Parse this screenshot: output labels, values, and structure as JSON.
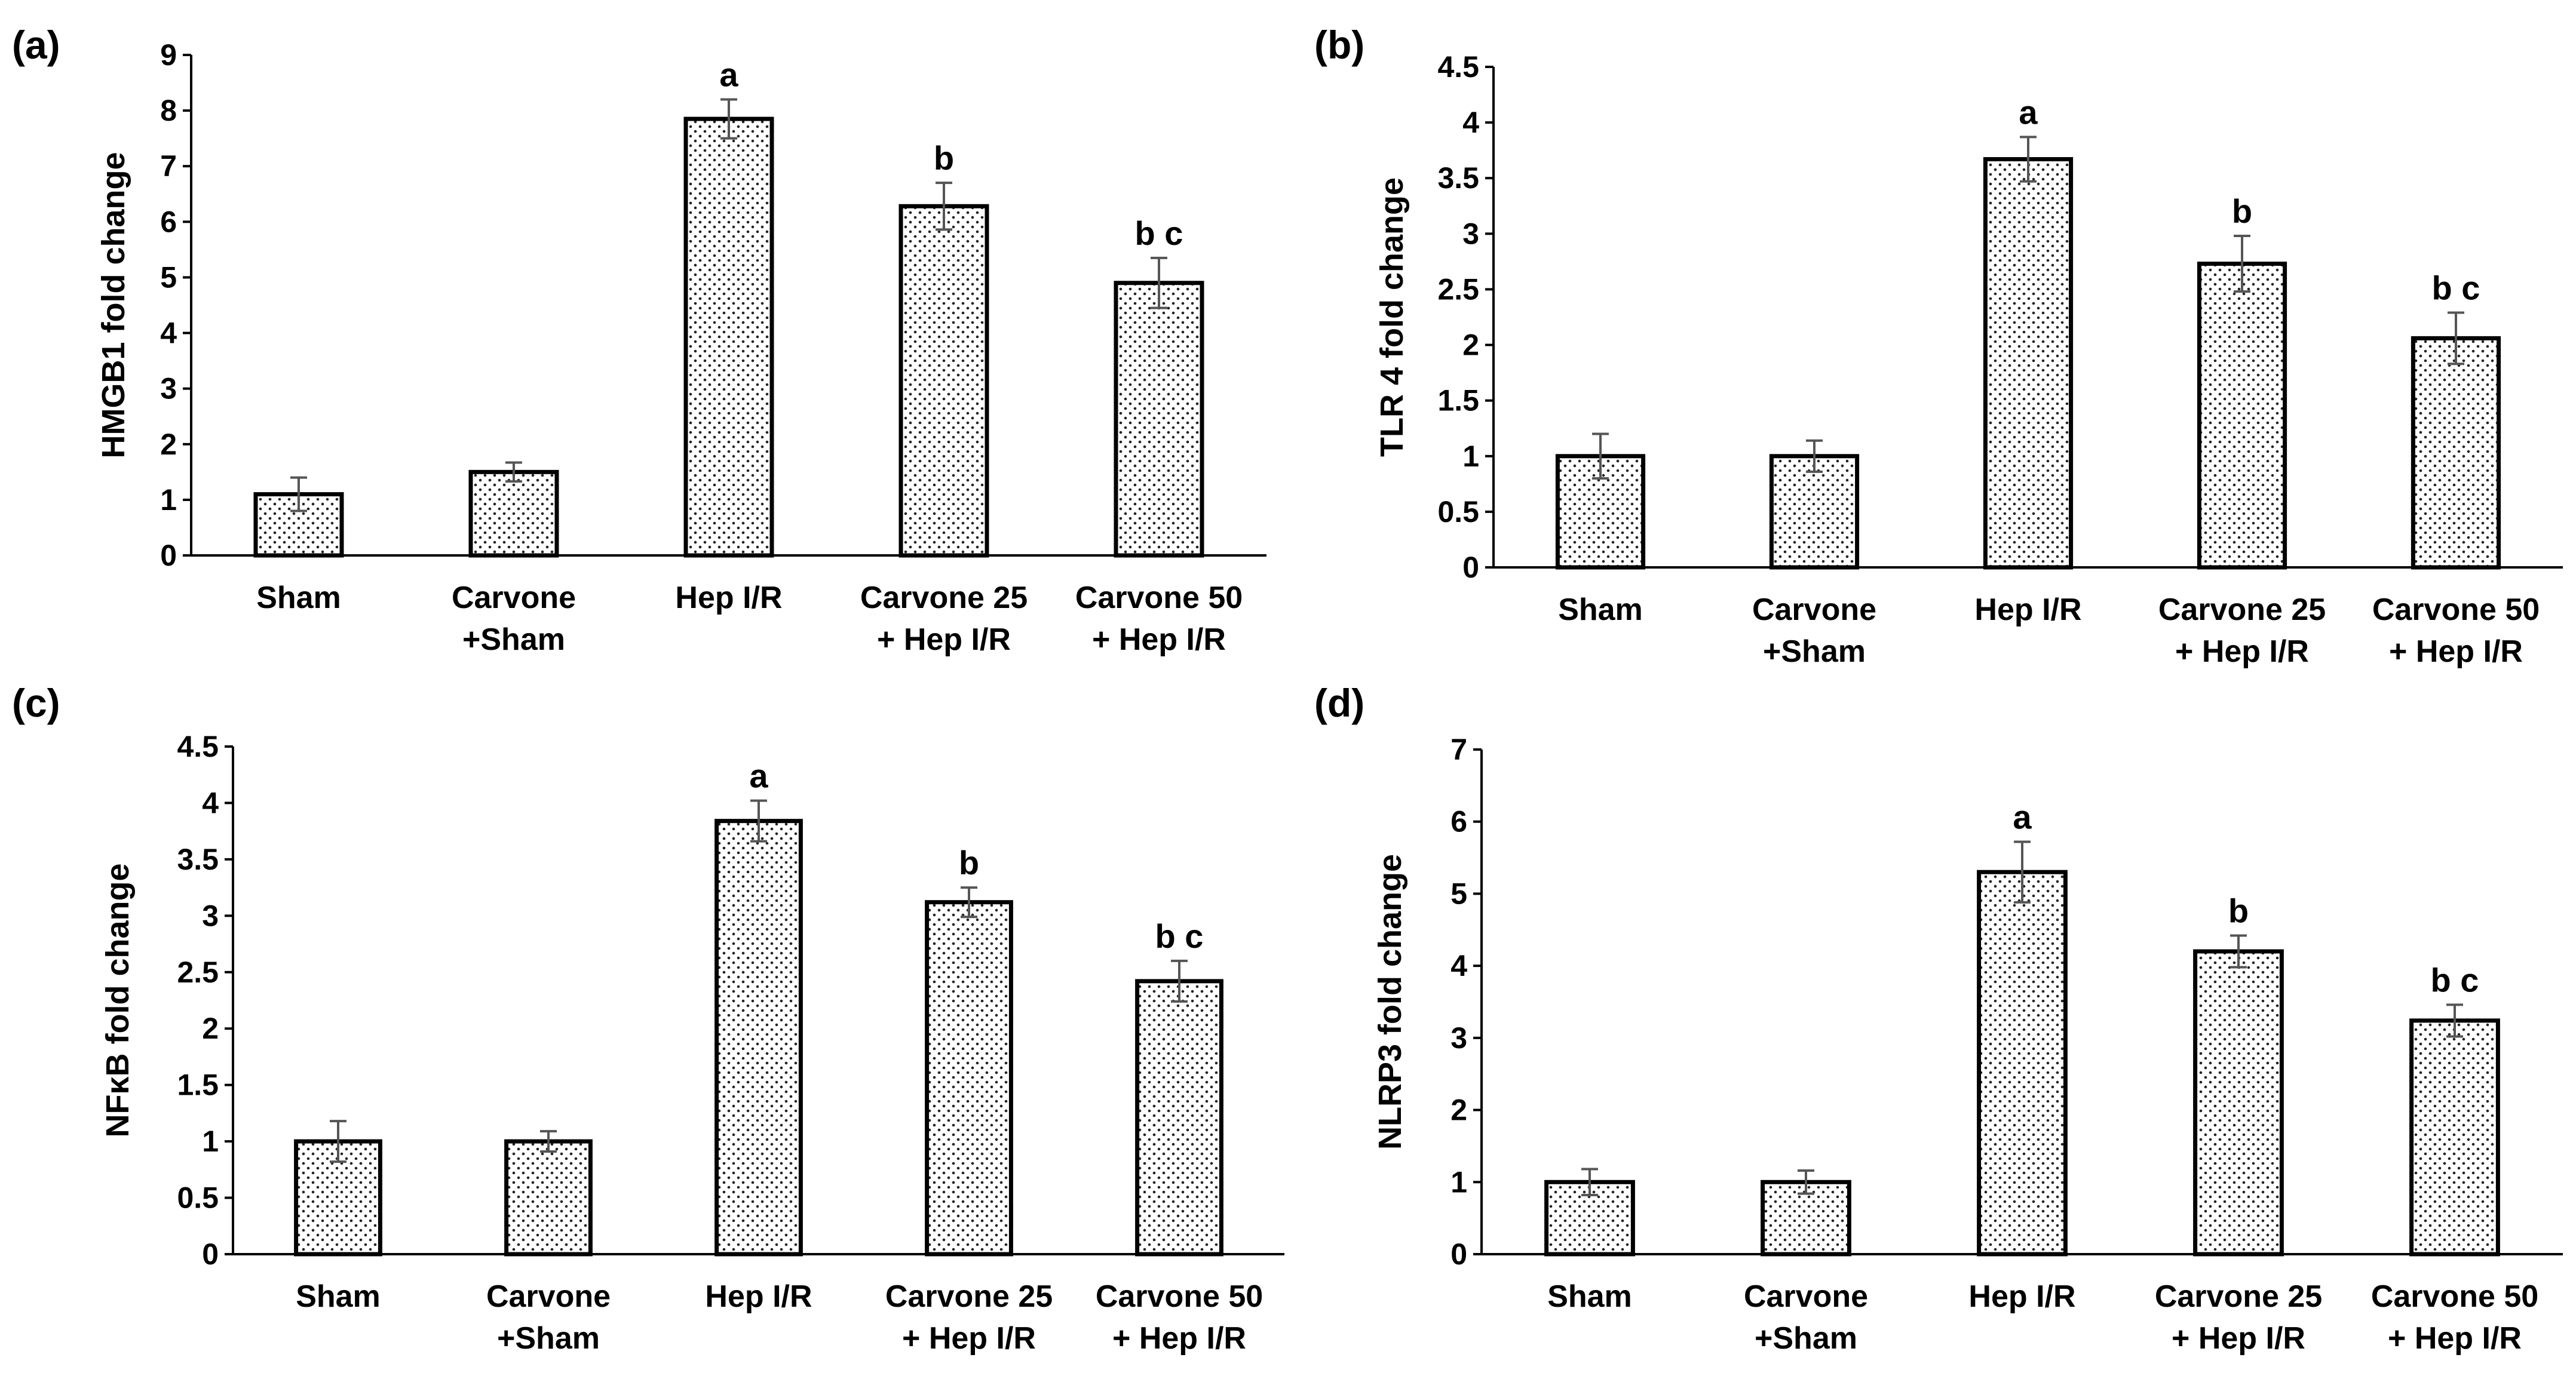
{
  "chart_data": [
    {
      "panel": "(a)",
      "type": "bar",
      "ylabel": "HMGB1 fold change",
      "ylim": [
        0,
        9
      ],
      "yticks": [
        "0",
        "1",
        "2",
        "3",
        "4",
        "5",
        "6",
        "7",
        "8",
        "9"
      ],
      "categories": [
        [
          "Sham"
        ],
        [
          "Carvone",
          "+Sham"
        ],
        [
          "Hep I/R"
        ],
        [
          "Carvone 25",
          "+ Hep I/R"
        ],
        [
          "Carvone 50",
          "+ Hep I/R"
        ]
      ],
      "values": [
        1.1,
        1.5,
        7.85,
        6.28,
        4.9
      ],
      "errors": [
        0.3,
        0.17,
        0.35,
        0.42,
        0.45
      ],
      "annotations": [
        "",
        "",
        "a",
        "b",
        "b c"
      ]
    },
    {
      "panel": "(b)",
      "type": "bar",
      "ylabel": "TLR 4 fold change",
      "ylim": [
        0,
        4.5
      ],
      "yticks": [
        "0",
        "0.5",
        "1",
        "1.5",
        "2",
        "2.5",
        "3",
        "3.5",
        "4",
        "4.5"
      ],
      "categories": [
        [
          "Sham"
        ],
        [
          "Carvone",
          "+Sham"
        ],
        [
          "Hep I/R"
        ],
        [
          "Carvone 25",
          "+ Hep I/R"
        ],
        [
          "Carvone 50",
          "+ Hep I/R"
        ]
      ],
      "values": [
        1.0,
        1.0,
        3.67,
        2.73,
        2.06
      ],
      "errors": [
        0.2,
        0.14,
        0.2,
        0.25,
        0.23
      ],
      "annotations": [
        "",
        "",
        "a",
        "b",
        "b c"
      ]
    },
    {
      "panel": "(c)",
      "type": "bar",
      "ylabel": "NFκB fold change",
      "ylim": [
        0,
        4.5
      ],
      "yticks": [
        "0",
        "0.5",
        "1",
        "1.5",
        "2",
        "2.5",
        "3",
        "3.5",
        "4",
        "4.5"
      ],
      "categories": [
        [
          "Sham"
        ],
        [
          "Carvone",
          "+Sham"
        ],
        [
          "Hep I/R"
        ],
        [
          "Carvone 25",
          "+ Hep I/R"
        ],
        [
          "Carvone 50",
          "+ Hep I/R"
        ]
      ],
      "values": [
        1.0,
        1.0,
        3.84,
        3.12,
        2.42
      ],
      "errors": [
        0.18,
        0.09,
        0.18,
        0.13,
        0.18
      ],
      "annotations": [
        "",
        "",
        "a",
        "b",
        "b c"
      ]
    },
    {
      "panel": "(d)",
      "type": "bar",
      "ylabel": "NLRP3  fold change",
      "ylim": [
        0,
        7
      ],
      "yticks": [
        "0",
        "1",
        "2",
        "3",
        "4",
        "5",
        "6",
        "7"
      ],
      "categories": [
        [
          "Sham"
        ],
        [
          "Carvone",
          "+Sham"
        ],
        [
          "Hep I/R"
        ],
        [
          "Carvone 25",
          "+ Hep I/R"
        ],
        [
          "Carvone 50",
          "+ Hep I/R"
        ]
      ],
      "values": [
        1.0,
        1.0,
        5.3,
        4.2,
        3.24
      ],
      "errors": [
        0.18,
        0.16,
        0.42,
        0.22,
        0.22
      ],
      "annotations": [
        "",
        "",
        "a",
        "b",
        "b c"
      ]
    }
  ]
}
